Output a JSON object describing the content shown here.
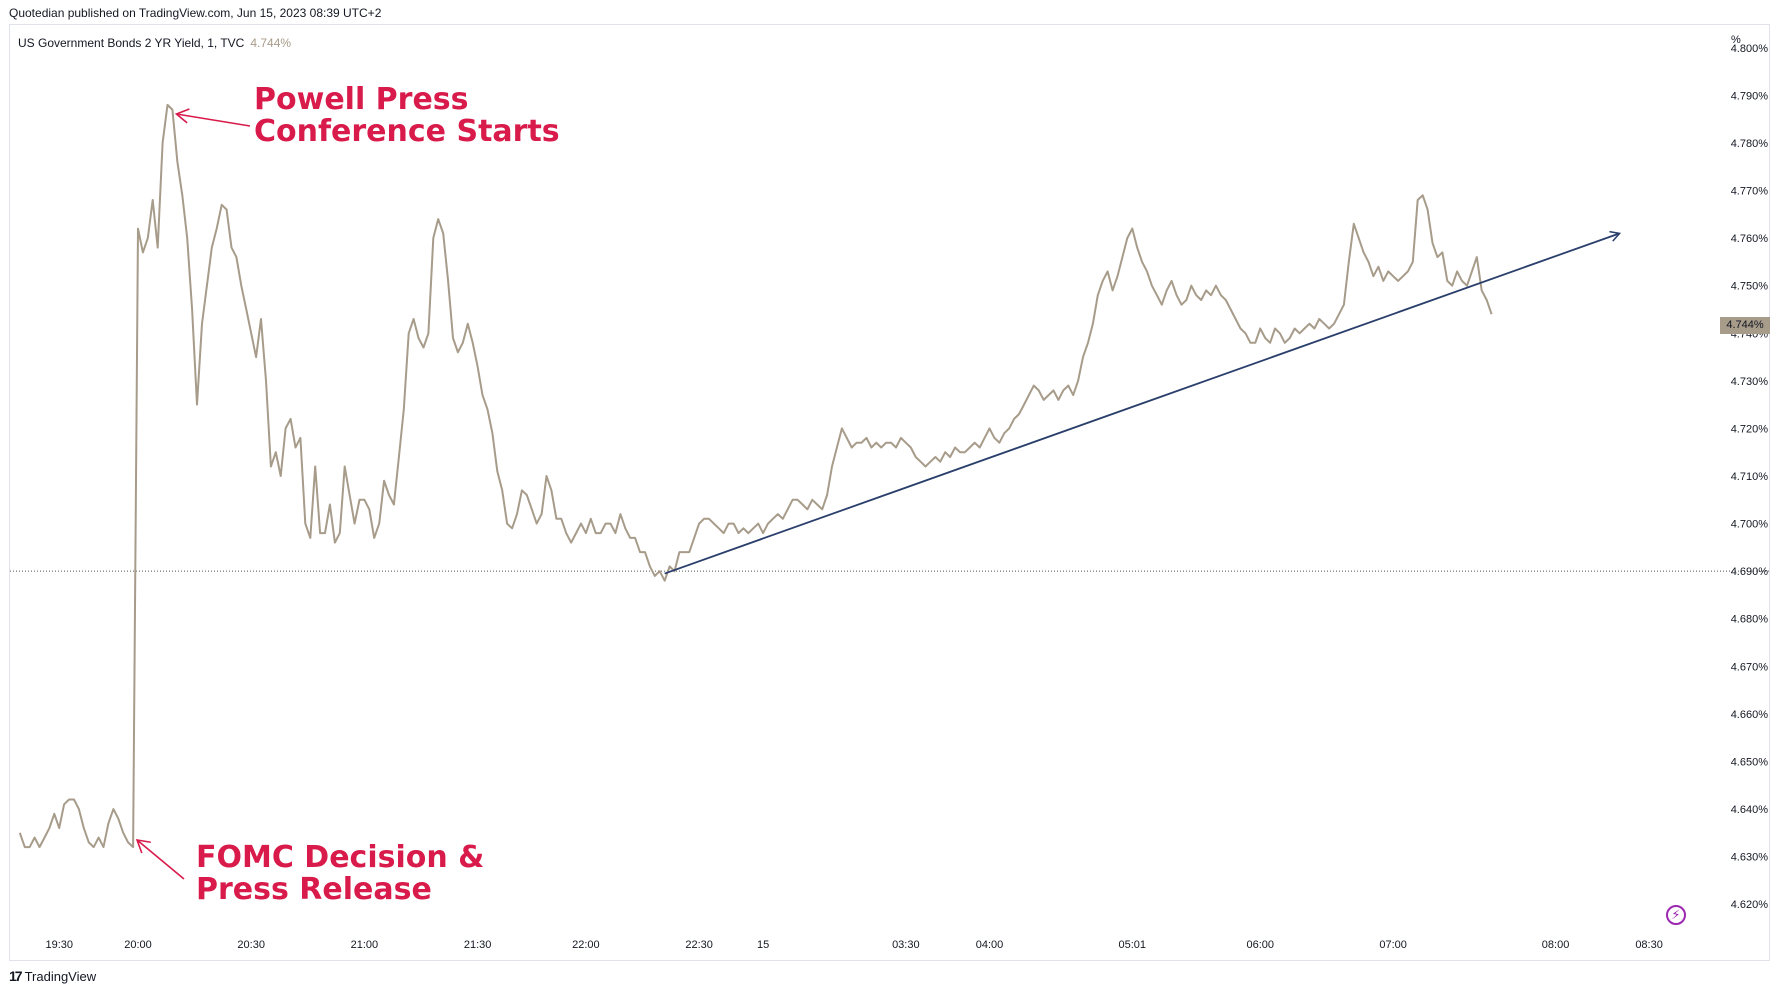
{
  "publish_line": "Quotedian published on TradingView.com, Jun 15, 2023 08:39 UTC+2",
  "legend": {
    "symbol": "US Government Bonds 2 YR Yield, 1, TVC",
    "last_value": "4.744%"
  },
  "brand": {
    "logo": "17",
    "name": "TradingView"
  },
  "colors": {
    "series": "#a79b8a",
    "trendline": "#2a3f6b",
    "annotation": "#d81b4a",
    "grid": "#e0e3eb"
  },
  "chart_data": {
    "type": "line",
    "unit": "%",
    "ylim": [
      4.615,
      4.805
    ],
    "y_ticks": [
      "4.800%",
      "4.790%",
      "4.780%",
      "4.770%",
      "4.760%",
      "4.750%",
      "4.740%",
      "4.730%",
      "4.720%",
      "4.710%",
      "4.700%",
      "4.690%",
      "4.680%",
      "4.670%",
      "4.660%",
      "4.650%",
      "4.640%",
      "4.630%",
      "4.620%"
    ],
    "x_ticks": [
      {
        "label": "19:30",
        "bar": 8
      },
      {
        "label": "20:00",
        "bar": 24
      },
      {
        "label": "20:30",
        "bar": 47
      },
      {
        "label": "21:00",
        "bar": 70
      },
      {
        "label": "21:30",
        "bar": 93
      },
      {
        "label": "22:00",
        "bar": 115
      },
      {
        "label": "22:30",
        "bar": 138
      },
      {
        "label": "15",
        "bar": 151
      },
      {
        "label": "03:30",
        "bar": 180
      },
      {
        "label": "04:00",
        "bar": 197
      },
      {
        "label": "05:01",
        "bar": 226
      },
      {
        "label": "06:00",
        "bar": 252
      },
      {
        "label": "07:00",
        "bar": 279
      },
      {
        "label": "08:00",
        "bar": 312
      },
      {
        "label": "08:30",
        "bar": 331
      }
    ],
    "x_range": [
      -2,
      345
    ],
    "series": [
      {
        "values": [
          4.635,
          4.632,
          4.632,
          4.634,
          4.632,
          4.634,
          4.636,
          4.639,
          4.636,
          4.641,
          4.642,
          4.642,
          4.64,
          4.636,
          4.633,
          4.632,
          4.634,
          4.632,
          4.637,
          4.64,
          4.638,
          4.635,
          4.633,
          4.632,
          4.762,
          4.757,
          4.76,
          4.768,
          4.758,
          4.78,
          4.788,
          4.787,
          4.776,
          4.769,
          4.76,
          4.745,
          4.725,
          4.742,
          4.75,
          4.758,
          4.762,
          4.767,
          4.766,
          4.758,
          4.756,
          4.75,
          4.745,
          4.74,
          4.735,
          4.743,
          4.73,
          4.712,
          4.715,
          4.71,
          4.72,
          4.722,
          4.716,
          4.718,
          4.7,
          4.697,
          4.712,
          4.698,
          4.698,
          4.704,
          4.696,
          4.698,
          4.712,
          4.706,
          4.7,
          4.705,
          4.705,
          4.703,
          4.697,
          4.7,
          4.709,
          4.706,
          4.704,
          4.714,
          4.724,
          4.74,
          4.743,
          4.739,
          4.737,
          4.74,
          4.76,
          4.764,
          4.761,
          4.751,
          4.739,
          4.736,
          4.738,
          4.742,
          4.738,
          4.733,
          4.727,
          4.724,
          4.719,
          4.711,
          4.707,
          4.7,
          4.699,
          4.702,
          4.707,
          4.706,
          4.703,
          4.7,
          4.702,
          4.71,
          4.707,
          4.701,
          4.701,
          4.698,
          4.696,
          4.698,
          4.7,
          4.698,
          4.701,
          4.698,
          4.698,
          4.7,
          4.7,
          4.698,
          4.702,
          4.699,
          4.697,
          4.697,
          4.694,
          4.694,
          4.691,
          4.689,
          4.69,
          4.688,
          4.691,
          4.69,
          4.694,
          4.694,
          4.694,
          4.697,
          4.7,
          4.701,
          4.701,
          4.7,
          4.699,
          4.698,
          4.7,
          4.7,
          4.698,
          4.699,
          4.698,
          4.699,
          4.7,
          4.698,
          4.7,
          4.701,
          4.702,
          4.701,
          4.703,
          4.705,
          4.705,
          4.704,
          4.703,
          4.705,
          4.704,
          4.703,
          4.706,
          4.712,
          4.716,
          4.72,
          4.718,
          4.716,
          4.717,
          4.717,
          4.718,
          4.716,
          4.717,
          4.716,
          4.717,
          4.717,
          4.716,
          4.718,
          4.717,
          4.716,
          4.714,
          4.713,
          4.712,
          4.713,
          4.714,
          4.713,
          4.715,
          4.714,
          4.716,
          4.715,
          4.715,
          4.716,
          4.717,
          4.716,
          4.718,
          4.72,
          4.718,
          4.717,
          4.719,
          4.72,
          4.722,
          4.723,
          4.725,
          4.727,
          4.729,
          4.728,
          4.726,
          4.727,
          4.728,
          4.726,
          4.728,
          4.729,
          4.727,
          4.73,
          4.735,
          4.738,
          4.742,
          4.748,
          4.751,
          4.753,
          4.749,
          4.752,
          4.756,
          4.76,
          4.762,
          4.758,
          4.755,
          4.753,
          4.75,
          4.748,
          4.746,
          4.749,
          4.751,
          4.748,
          4.746,
          4.747,
          4.75,
          4.748,
          4.747,
          4.749,
          4.748,
          4.75,
          4.748,
          4.747,
          4.745,
          4.743,
          4.741,
          4.74,
          4.738,
          4.738,
          4.741,
          4.739,
          4.738,
          4.741,
          4.74,
          4.738,
          4.739,
          4.741,
          4.74,
          4.741,
          4.742,
          4.741,
          4.743,
          4.742,
          4.741,
          4.742,
          4.744,
          4.746,
          4.755,
          4.763,
          4.76,
          4.757,
          4.755,
          4.752,
          4.754,
          4.751,
          4.753,
          4.752,
          4.751,
          4.752,
          4.753,
          4.755,
          4.768,
          4.769,
          4.766,
          4.759,
          4.756,
          4.757,
          4.751,
          4.75,
          4.753,
          4.751,
          4.75,
          4.753,
          4.756,
          4.749,
          4.747,
          4.744
        ]
      }
    ],
    "reference_line": 4.69,
    "trendline": {
      "from": {
        "bar": 131,
        "y": 4.6895
      },
      "to": {
        "bar": 325,
        "y": 4.761
      }
    },
    "annotations": [
      {
        "lines": [
          "Powell Press",
          "Conference Starts"
        ],
        "target_bar": 31,
        "target_y": 4.7865
      },
      {
        "lines": [
          "FOMC Decision &",
          "Press Release"
        ],
        "target_bar": 23,
        "target_y": 4.6335
      }
    ]
  }
}
